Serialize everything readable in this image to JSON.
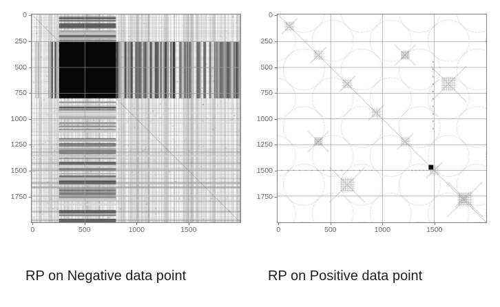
{
  "figure": {
    "background": "#ffffff",
    "type": "recurrence-plot-comparison"
  },
  "chart_data": [
    {
      "type": "heatmap",
      "id": "negative",
      "caption": "RP on Negative data point",
      "xlabel": "",
      "ylabel": "",
      "x_ticks": [
        0,
        500,
        1000,
        1500
      ],
      "y_ticks": [
        0,
        250,
        500,
        750,
        1000,
        1250,
        1500,
        1750
      ],
      "x_range": [
        -15,
        2005
      ],
      "y_range": [
        -15,
        2005
      ],
      "grid": true,
      "grid_x": [
        500,
        1000,
        1500
      ],
      "grid_y": [
        250,
        500,
        750,
        1000,
        1250,
        1500,
        1750
      ],
      "colors": {
        "grid": "#989898",
        "background": "#ededed",
        "ink": "#060606",
        "tick_text": "#686868"
      },
      "features": {
        "description": "dense barcode-like texture of fine gray vertical and horizontal lines",
        "black_square": [
          250,
          250,
          800,
          800
        ],
        "horizontal_stripe_column_band": [
          250,
          800
        ],
        "vertical_stripe_row_band": [
          250,
          800
        ],
        "dark_rows": [
          1430,
          1620,
          1900,
          1985
        ],
        "seed": 7
      }
    },
    {
      "type": "heatmap",
      "id": "positive",
      "caption": "RP on Positive data point",
      "xlabel": "",
      "ylabel": "",
      "x_ticks": [
        0,
        500,
        1000,
        1500
      ],
      "y_ticks": [
        0,
        250,
        500,
        750,
        1000,
        1250,
        1500,
        1750
      ],
      "x_range": [
        -15,
        2005
      ],
      "y_range": [
        -15,
        2005
      ],
      "grid": true,
      "grid_x": [
        500,
        1000,
        1500
      ],
      "grid_y": [
        250,
        500,
        750,
        1000,
        1250,
        1500,
        1750
      ],
      "colors": {
        "grid": "#989898",
        "background": "#ffffff",
        "ink": "#b5b5b5",
        "tick_text": "#686868"
      },
      "features": {
        "description": "sparse quasi-periodic web of dotted circle outlines with main diagonal",
        "diagonal": true,
        "knot_positions": [
          100,
          380,
          660,
          940,
          1220,
          1500,
          1780
        ],
        "circle_lattice": {
          "origin": -40,
          "spacing": 280,
          "radius": 200,
          "parity": "odd"
        },
        "black_marker": [
          1470,
          1470
        ],
        "dashed_row_y": 1500,
        "dashed_col_x": 1490,
        "dense_crosses": [
          {
            "x": 380,
            "y": 1220,
            "size": "small"
          },
          {
            "x": 1220,
            "y": 380,
            "size": "small"
          },
          {
            "x": 660,
            "y": 1640,
            "size": "large"
          },
          {
            "x": 1640,
            "y": 660,
            "size": "large"
          },
          {
            "x": 1800,
            "y": 1780,
            "size": "large"
          }
        ],
        "seed": 11
      }
    }
  ]
}
